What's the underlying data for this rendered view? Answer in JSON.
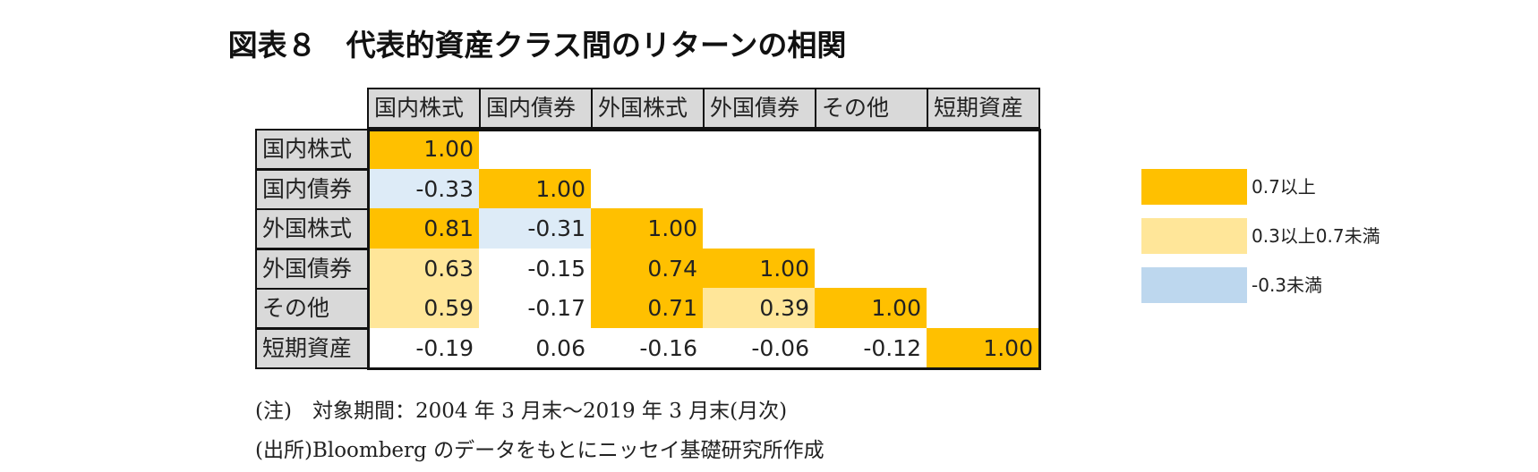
{
  "title": "図表８　代表的資産クラス間のリターンの相関",
  "chart_data": {
    "type": "heatmap",
    "columns": [
      "国内株式",
      "国内債券",
      "外国株式",
      "外国債券",
      "その他",
      "短期資産"
    ],
    "rows": [
      "国内株式",
      "国内債券",
      "外国株式",
      "外国債券",
      "その他",
      "短期資産"
    ],
    "values": [
      [
        "1.00"
      ],
      [
        "-0.33",
        "1.00"
      ],
      [
        "0.81",
        "-0.31",
        "1.00"
      ],
      [
        "0.63",
        "-0.15",
        "0.74",
        "1.00"
      ],
      [
        "0.59",
        "-0.17",
        "0.71",
        "0.39",
        "1.00"
      ],
      [
        "-0.19",
        "0.06",
        "-0.16",
        "-0.06",
        "-0.12",
        "1.00"
      ]
    ],
    "color_scale": [
      {
        "label": "0.7以上",
        "color": "#ffc000",
        "min": 0.7
      },
      {
        "label": "0.3以上0.7未満",
        "color": "#ffe699",
        "min": 0.3,
        "max": 0.7
      },
      {
        "label": "-0.3未満",
        "color": "#bdd7ee",
        "max": -0.3
      }
    ],
    "cell_colors": {
      "high": "#ffc000",
      "mid": "#ffe699",
      "low": "#ddebf7"
    }
  },
  "legend": [
    {
      "label": "0.7以上",
      "color": "#ffc000"
    },
    {
      "label": "0.3以上0.7未満",
      "color": "#ffe699"
    },
    {
      "label": "-0.3未満",
      "color": "#bdd7ee"
    }
  ],
  "notes": [
    "(注)　対象期間：2004 年 3 月末～2019 年 3 月末(月次)",
    "(出所)Bloomberg のデータをもとにニッセイ基礎研究所作成"
  ]
}
